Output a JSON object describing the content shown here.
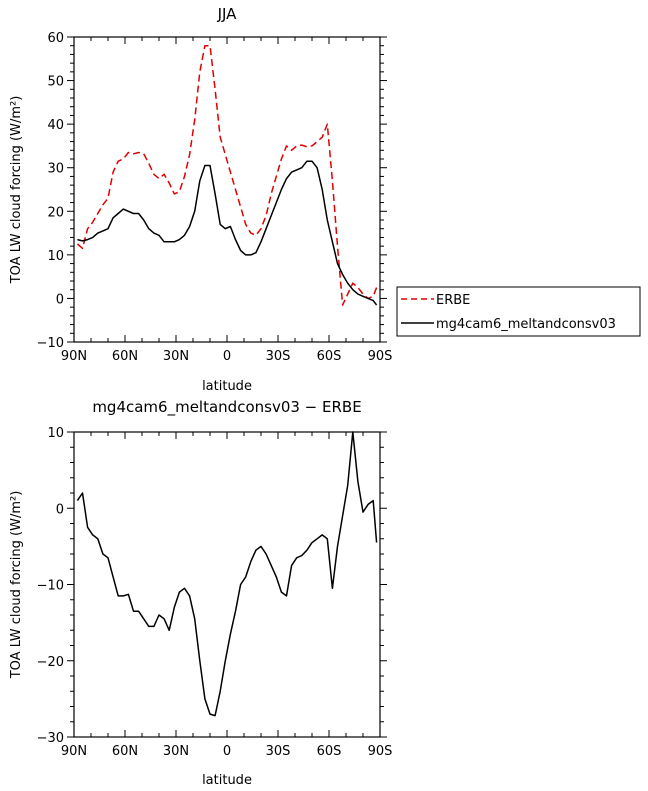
{
  "chart_data": [
    {
      "type": "line",
      "title": "JJA",
      "xlabel": "latitude",
      "ylabel": "TOA LW cloud forcing (W/m²)",
      "xlim": [
        90,
        -90
      ],
      "ylim": [
        -10,
        60
      ],
      "xticks": [
        90,
        60,
        30,
        0,
        -30,
        -60,
        -90
      ],
      "xtick_labels": [
        "90N",
        "60N",
        "30N",
        "0",
        "30S",
        "60S",
        "90S"
      ],
      "yticks": [
        -10,
        0,
        10,
        20,
        30,
        40,
        50,
        60
      ],
      "ytick_labels": [
        "−10",
        "0",
        "10",
        "20",
        "30",
        "40",
        "50",
        "60"
      ],
      "grid": false,
      "legend": {
        "placement": "outside-right",
        "entries": [
          "ERBE",
          "mg4cam6_meltandconsv03"
        ]
      },
      "series": [
        {
          "name": "ERBE",
          "color": "#e00000",
          "dash": "dashed",
          "x": [
            88,
            85,
            82,
            79,
            76,
            73,
            70,
            67,
            64,
            61,
            58,
            55,
            52,
            49,
            46,
            43,
            40,
            37,
            34,
            31,
            28,
            25,
            22,
            19,
            16,
            13,
            10,
            7,
            4,
            1,
            -2,
            -5,
            -8,
            -11,
            -14,
            -17,
            -20,
            -23,
            -26,
            -29,
            -32,
            -35,
            -38,
            -41,
            -44,
            -47,
            -50,
            -53,
            -56,
            -59,
            -62,
            -65,
            -68,
            -71,
            -74,
            -77,
            -80,
            -83,
            -86,
            -88
          ],
          "y": [
            12.5,
            11.5,
            16,
            17.5,
            19.5,
            21.5,
            23,
            29,
            31.5,
            32,
            33.5,
            33.2,
            33.5,
            33.2,
            31,
            28.5,
            27.5,
            28.5,
            26.5,
            24,
            24.5,
            28,
            33,
            41,
            52,
            58,
            58,
            48,
            37,
            33,
            29,
            25,
            21,
            17,
            15,
            14.5,
            16,
            19,
            24,
            28,
            32,
            35,
            34,
            35,
            35.2,
            34.8,
            35,
            36,
            37,
            40,
            27,
            12,
            -1.5,
            1,
            3.5,
            2.5,
            1,
            0,
            0.5,
            2.5
          ]
        },
        {
          "name": "mg4cam6_meltandconsv03",
          "color": "#000000",
          "dash": "solid",
          "x": [
            88,
            85,
            82,
            79,
            76,
            73,
            70,
            67,
            64,
            61,
            58,
            55,
            52,
            49,
            46,
            43,
            40,
            37,
            34,
            31,
            28,
            25,
            22,
            19,
            16,
            13,
            10,
            7,
            4,
            1,
            -2,
            -5,
            -8,
            -11,
            -14,
            -17,
            -20,
            -23,
            -26,
            -29,
            -32,
            -35,
            -38,
            -41,
            -44,
            -47,
            -50,
            -53,
            -56,
            -59,
            -62,
            -65,
            -68,
            -71,
            -74,
            -77,
            -80,
            -83,
            -86,
            -88
          ],
          "y": [
            13.5,
            13.2,
            13.5,
            14,
            15,
            15.5,
            16,
            18.5,
            19.5,
            20.5,
            20,
            19.5,
            19.5,
            18,
            16,
            15,
            14.5,
            13,
            13,
            13,
            13.5,
            14.5,
            16.5,
            20,
            27,
            30.5,
            30.5,
            24,
            17,
            16,
            16.5,
            13.5,
            11,
            10,
            10,
            10.5,
            13,
            16,
            19,
            22,
            25,
            27.5,
            29,
            29.5,
            30,
            31.5,
            31.5,
            30,
            25,
            18,
            13,
            8,
            5.5,
            3.5,
            2,
            1,
            0.5,
            0,
            -0.5,
            -1.5
          ]
        }
      ]
    },
    {
      "type": "line",
      "title": "mg4cam6_meltandconsv03 − ERBE",
      "xlabel": "latitude",
      "ylabel": "TOA LW cloud forcing (W/m²)",
      "xlim": [
        90,
        -90
      ],
      "ylim": [
        -30,
        10
      ],
      "xticks": [
        90,
        60,
        30,
        0,
        -30,
        -60,
        -90
      ],
      "xtick_labels": [
        "90N",
        "60N",
        "30N",
        "0",
        "30S",
        "60S",
        "90S"
      ],
      "yticks": [
        -30,
        -20,
        -10,
        0,
        10
      ],
      "ytick_labels": [
        "−30",
        "−20",
        "−10",
        "0",
        "10"
      ],
      "grid": false,
      "series": [
        {
          "color": "#000000",
          "dash": "solid",
          "x": [
            88,
            85,
            82,
            79,
            76,
            73,
            70,
            67,
            64,
            61,
            58,
            55,
            52,
            49,
            46,
            43,
            40,
            37,
            34,
            31,
            28,
            25,
            22,
            19,
            16,
            13,
            10,
            7,
            4,
            1,
            -2,
            -5,
            -8,
            -11,
            -14,
            -17,
            -20,
            -23,
            -26,
            -29,
            -32,
            -35,
            -38,
            -41,
            -44,
            -47,
            -50,
            -53,
            -56,
            -59,
            -62,
            -65,
            -68,
            -71,
            -74,
            -77,
            -80,
            -83,
            -86,
            -88
          ],
          "y": [
            1,
            2,
            -2.5,
            -3.5,
            -4,
            -6,
            -6.5,
            -9,
            -11.5,
            -11.5,
            -11.3,
            -13.5,
            -13.5,
            -14.5,
            -15.5,
            -15.5,
            -14,
            -14.5,
            -16,
            -13,
            -11,
            -10.5,
            -11.5,
            -14.5,
            -20,
            -25,
            -27,
            -27.2,
            -24,
            -20,
            -16.5,
            -13.5,
            -10,
            -9,
            -7,
            -5.5,
            -5,
            -6,
            -7.5,
            -9,
            -11,
            -11.5,
            -7.5,
            -6.5,
            -6.2,
            -5.5,
            -4.5,
            -4,
            -3.5,
            -4,
            -10.5,
            -5,
            -1,
            3,
            10,
            3.5,
            -0.5,
            0.5,
            1,
            -4.5
          ]
        }
      ]
    }
  ]
}
